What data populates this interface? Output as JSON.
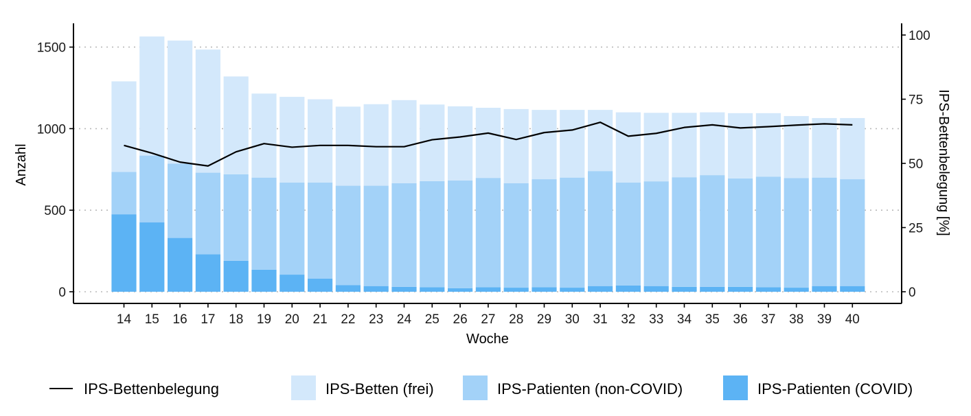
{
  "chart_data": {
    "type": "bar",
    "stacked": true,
    "xlabel": "Woche",
    "ylabel": "Anzahl",
    "y2label": "IPS-Bettenbelegung [%]",
    "categories": [
      "14",
      "15",
      "16",
      "17",
      "18",
      "19",
      "20",
      "21",
      "22",
      "23",
      "24",
      "25",
      "26",
      "27",
      "28",
      "29",
      "30",
      "31",
      "32",
      "33",
      "34",
      "35",
      "36",
      "37",
      "38",
      "39",
      "40"
    ],
    "ylim": [
      -60,
      1620
    ],
    "yticks": [
      0,
      500,
      1000,
      1500
    ],
    "y2lim": [
      -4,
      104
    ],
    "y2ticks": [
      0,
      25,
      50,
      75,
      100
    ],
    "grid": true,
    "legend_position": "bottom",
    "series": [
      {
        "name": "IPS-Patienten (COVID)",
        "color": "#5cb3f4",
        "values": [
          475,
          425,
          330,
          230,
          190,
          135,
          105,
          80,
          40,
          35,
          30,
          28,
          22,
          28,
          25,
          28,
          25,
          35,
          38,
          35,
          30,
          30,
          30,
          28,
          25,
          35,
          35
        ]
      },
      {
        "name": "IPS-Patienten (non-COVID)",
        "color": "#a3d2f8",
        "values": [
          260,
          410,
          455,
          500,
          530,
          565,
          565,
          590,
          610,
          615,
          635,
          650,
          660,
          670,
          640,
          662,
          675,
          705,
          632,
          642,
          672,
          685,
          665,
          677,
          672,
          665,
          655
        ]
      },
      {
        "name": "IPS-Betten (frei)",
        "color": "#d3e8fb",
        "values": [
          555,
          730,
          755,
          755,
          600,
          515,
          525,
          510,
          485,
          500,
          510,
          470,
          455,
          430,
          455,
          425,
          415,
          375,
          430,
          420,
          395,
          385,
          400,
          390,
          380,
          365,
          375
        ]
      }
    ],
    "line_series": {
      "name": "IPS-Bettenbelegung",
      "axis": "right",
      "color": "#000000",
      "values": [
        57,
        54,
        50.5,
        49,
        54.5,
        57.7,
        56.3,
        57,
        57,
        56.5,
        56.5,
        59.2,
        60.3,
        61.8,
        59.3,
        62,
        63,
        66,
        60.6,
        61.7,
        64,
        65,
        63.8,
        64.3,
        64.9,
        65.4,
        65
      ]
    }
  }
}
